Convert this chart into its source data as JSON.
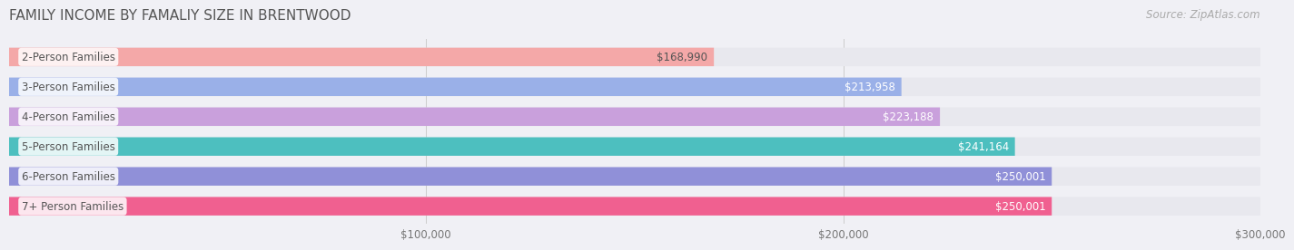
{
  "title": "FAMILY INCOME BY FAMALIY SIZE IN BRENTWOOD",
  "source": "Source: ZipAtlas.com",
  "categories": [
    "2-Person Families",
    "3-Person Families",
    "4-Person Families",
    "5-Person Families",
    "6-Person Families",
    "7+ Person Families"
  ],
  "values": [
    168990,
    213958,
    223188,
    241164,
    250001,
    250001
  ],
  "bar_colors": [
    "#f4a8a8",
    "#9ab0e8",
    "#c9a0dc",
    "#4dbfbf",
    "#9090d8",
    "#f06090"
  ],
  "value_labels": [
    "$168,990",
    "$213,958",
    "$223,188",
    "$241,164",
    "$250,001",
    "$250,001"
  ],
  "xmin": 0,
  "xmax": 300000,
  "xticks": [
    100000,
    200000,
    300000
  ],
  "xtick_labels": [
    "$100,000",
    "$200,000",
    "$300,000"
  ],
  "background_color": "#f0f0f5",
  "bar_background": "#e8e8ee",
  "bar_height": 0.62,
  "title_fontsize": 11,
  "label_fontsize": 8.5,
  "value_fontsize": 8.5
}
